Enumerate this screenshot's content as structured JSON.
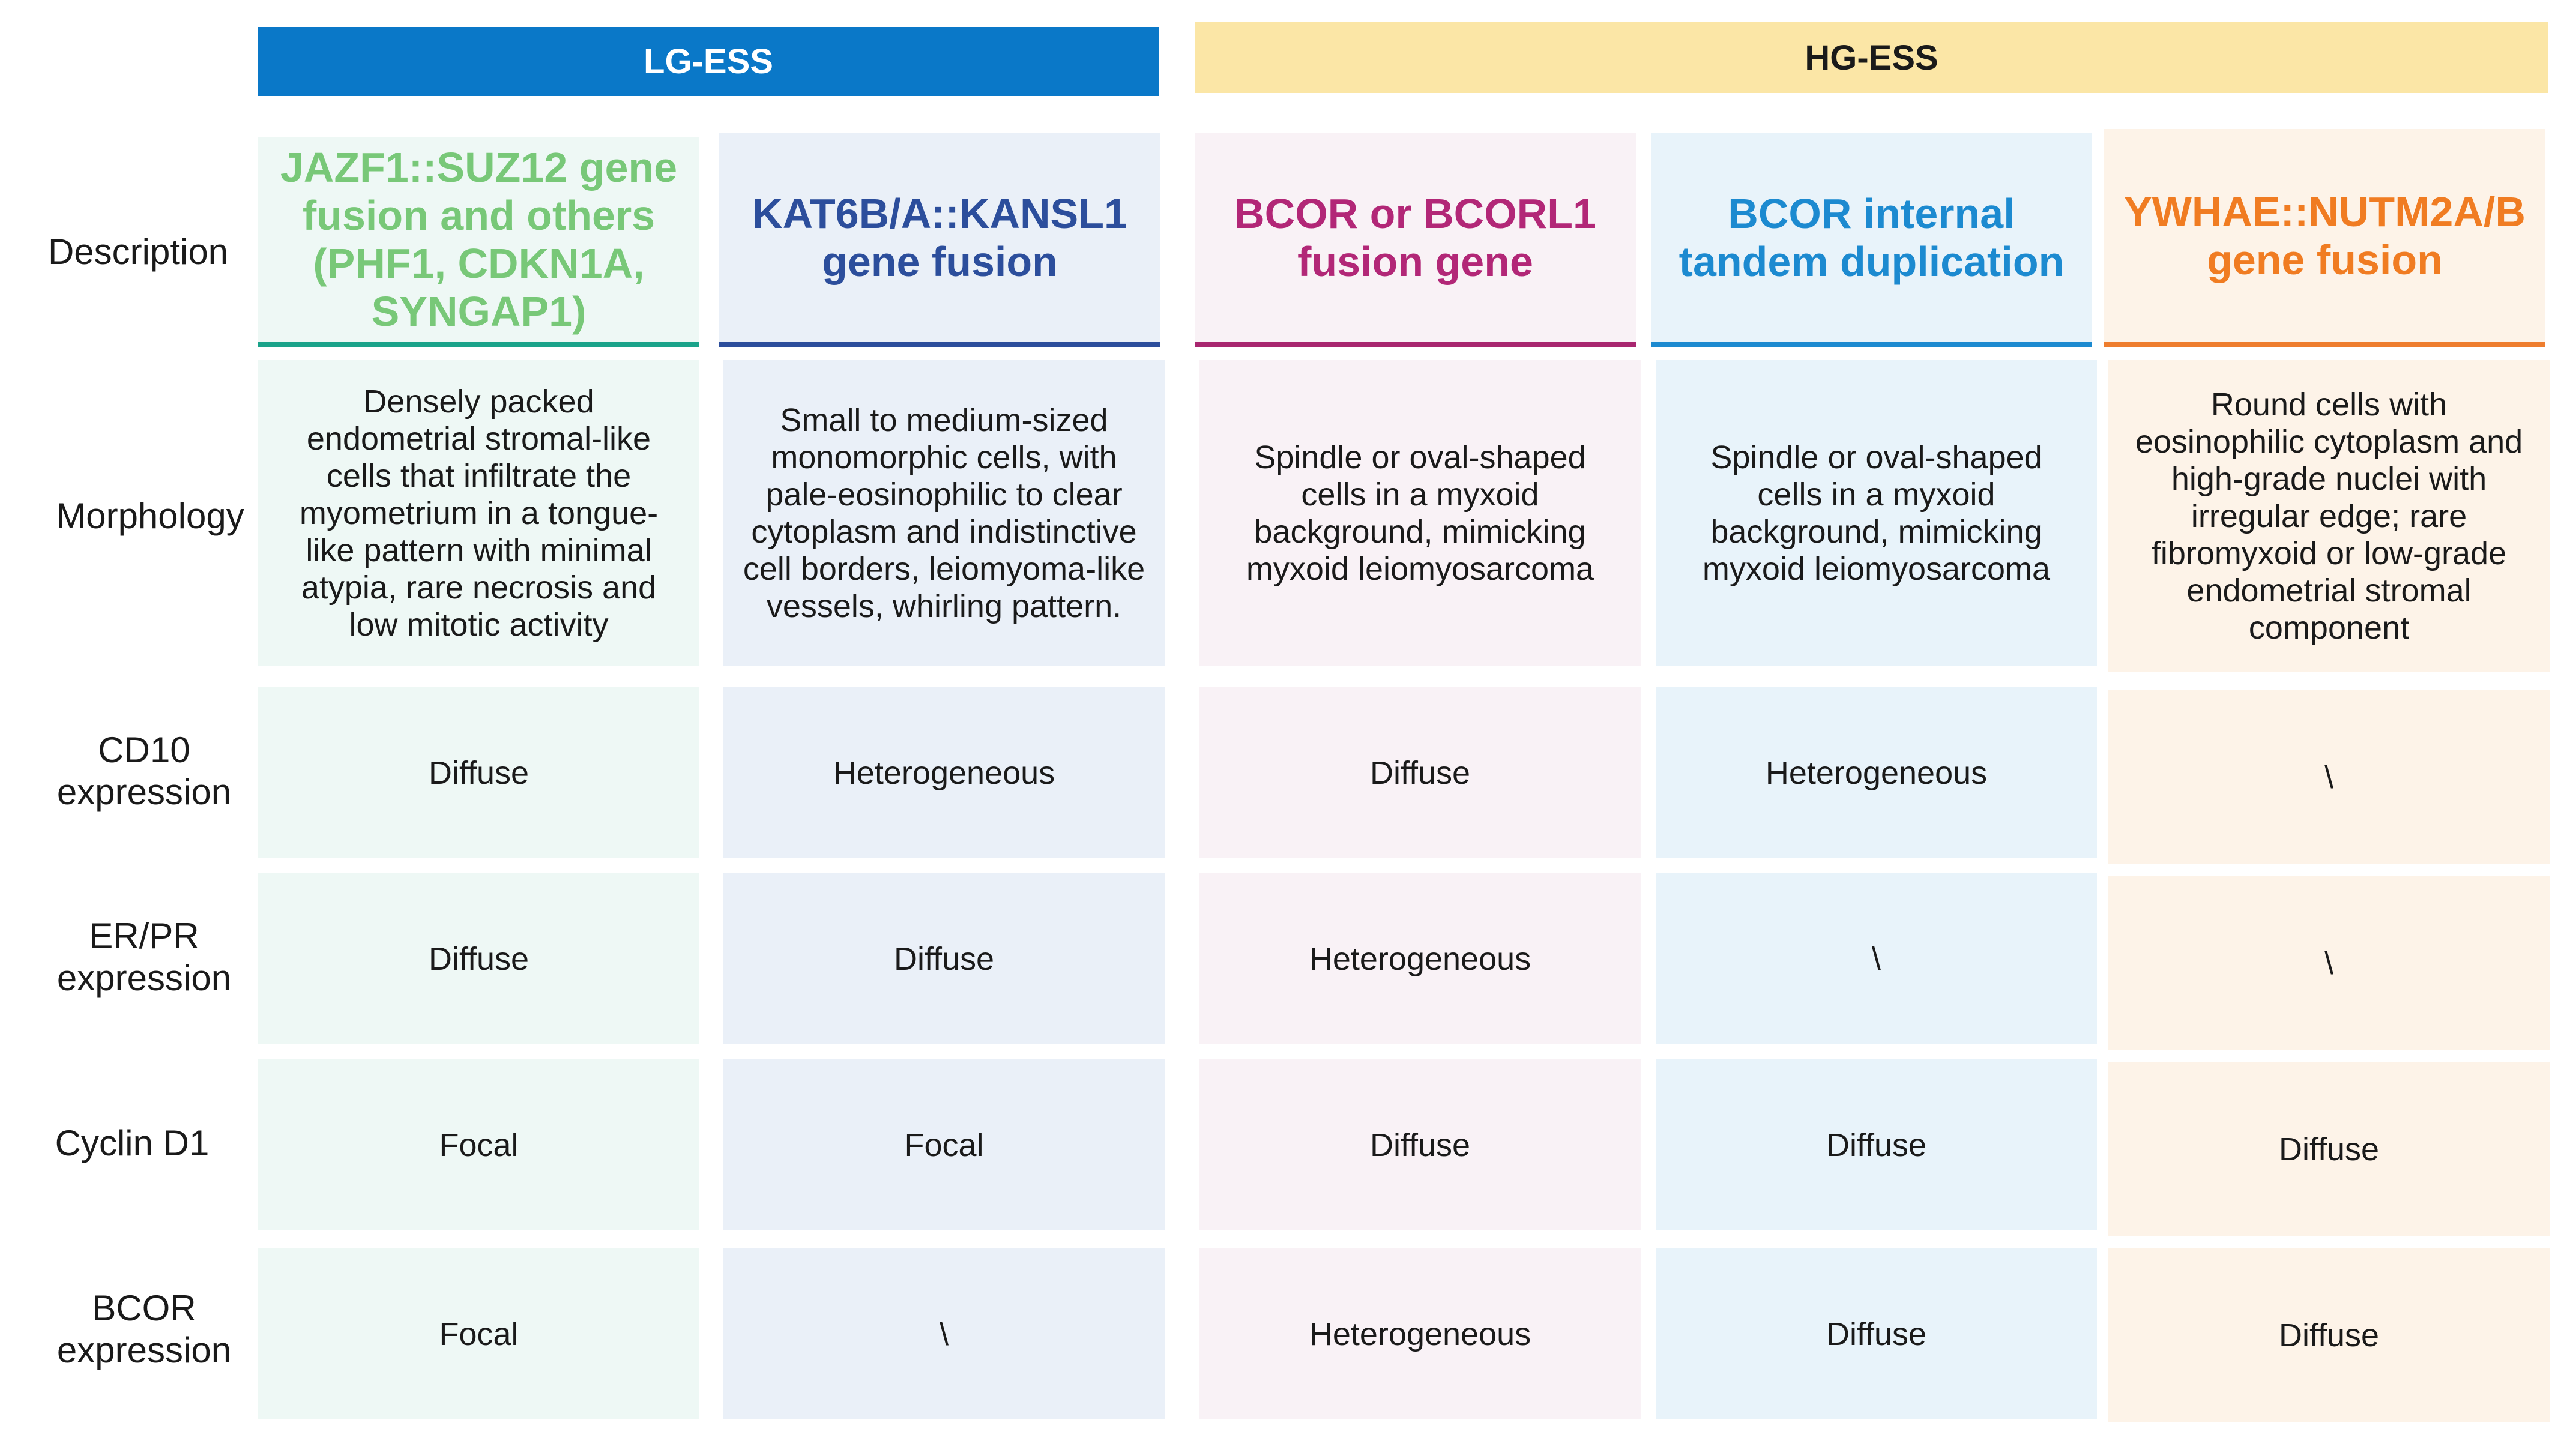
{
  "groups": [
    {
      "label": "LG-ESS",
      "bg": "#0a78c8",
      "fg": "#ffffff"
    },
    {
      "label": "HG-ESS",
      "bg": "#fbe6a6",
      "fg": "#1a1a1a"
    }
  ],
  "row_labels": [
    "Description",
    "Morphology",
    "CD10\nexpression",
    "ER/PR\nexpression",
    "Cyclin D1",
    "BCOR\nexpression"
  ],
  "columns": [
    {
      "description": "JAZF1::SUZ12 gene fusion and others (PHF1, CDKN1A, SYNGAP1)",
      "title_color": "#78c878",
      "underline": "#1aa38a",
      "bg": "#eef8f5",
      "morphology": "Densely packed endometrial stromal-like cells that infiltrate the myometrium in a tongue-like pattern with minimal atypia, rare necrosis and low mitotic activity",
      "cd10": "Diffuse",
      "erpr": "Diffuse",
      "cyclin": "Focal",
      "bcor": "Focal"
    },
    {
      "description": "KAT6B/A::KANSL1 gene fusion",
      "title_color": "#2c4e9c",
      "underline": "#2c4e9c",
      "bg": "#eaf0f8",
      "morphology": "Small to medium-sized monomorphic cells, with pale-eosinophilic to clear cytoplasm and indistinctive cell borders, leiomyoma-like vessels, whirling pattern.",
      "cd10": "Heterogeneous",
      "erpr": "Diffuse",
      "cyclin": "Focal",
      "bcor": "\\"
    },
    {
      "description": "BCOR or BCORL1 fusion gene",
      "title_color": "#b22777",
      "underline": "#a8266f",
      "bg": "#f9f2f6",
      "morphology": "Spindle or oval-shaped cells in a myxoid background, mimicking myxoid leiomyosarcoma",
      "cd10": "Diffuse",
      "erpr": "Heterogeneous",
      "cyclin": "Diffuse",
      "bcor": "Heterogeneous"
    },
    {
      "description": "BCOR internal tandem duplication",
      "title_color": "#1c8ad0",
      "underline": "#1c8ad0",
      "bg": "#e8f3fa",
      "morphology": "Spindle or oval-shaped cells in a myxoid background, mimicking myxoid leiomyosarcoma",
      "cd10": "Heterogeneous",
      "erpr": "\\",
      "cyclin": "Diffuse",
      "bcor": "Diffuse"
    },
    {
      "description": "YWHAE::NUTM2A/B gene fusion",
      "title_color": "#f07c22",
      "underline": "#ee7d2e",
      "bg": "#fdf3e8",
      "morphology": "Round cells with eosinophilic cytoplasm and high-grade nuclei with irregular edge; rare fibromyxoid or low-grade endometrial stromal component",
      "cd10": "\\",
      "erpr": "\\",
      "cyclin": "Diffuse",
      "bcor": "Diffuse"
    }
  ]
}
